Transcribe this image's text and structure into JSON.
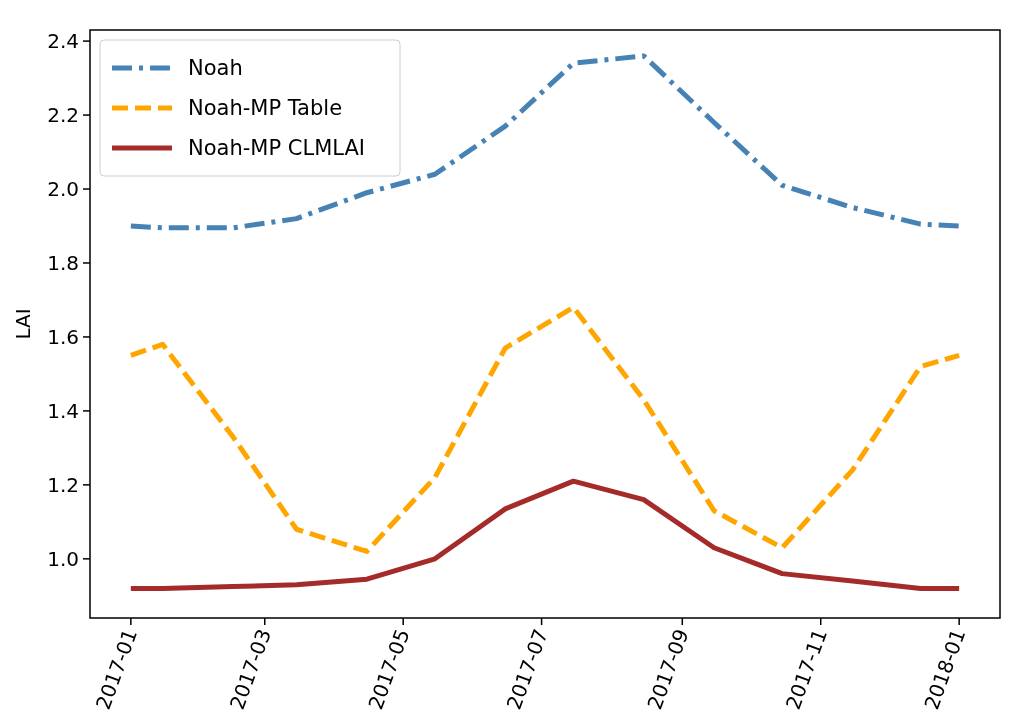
{
  "chart_data": {
    "type": "line",
    "ylabel": "LAI",
    "x": [
      "2017-01-01",
      "2017-01-15",
      "2017-02-15",
      "2017-03-15",
      "2017-04-15",
      "2017-05-15",
      "2017-06-15",
      "2017-07-15",
      "2017-08-15",
      "2017-09-15",
      "2017-10-15",
      "2017-11-15",
      "2017-12-15",
      "2018-01-01"
    ],
    "series": [
      {
        "name": "Noah",
        "color": "#4682b4",
        "line_style": "dashdot",
        "values": [
          1.9,
          1.895,
          1.895,
          1.92,
          1.99,
          2.04,
          2.17,
          2.34,
          2.36,
          2.18,
          2.01,
          1.95,
          1.905,
          1.9
        ]
      },
      {
        "name": "Noah-MP Table",
        "color": "#ffa500",
        "line_style": "dashed",
        "values": [
          1.55,
          1.58,
          1.33,
          1.08,
          1.02,
          1.22,
          1.57,
          1.68,
          1.43,
          1.13,
          1.03,
          1.24,
          1.52,
          1.55
        ]
      },
      {
        "name": "Noah-MP CLMLAI",
        "color": "#a52a2a",
        "line_style": "solid",
        "values": [
          0.92,
          0.92,
          0.925,
          0.93,
          0.945,
          1.0,
          1.135,
          1.21,
          1.16,
          1.03,
          0.96,
          0.94,
          0.92,
          0.92
        ]
      }
    ],
    "xlim": [
      "2016-12-14",
      "2018-01-19"
    ],
    "xticks": [
      {
        "value": "2017-01",
        "label": "2017-01"
      },
      {
        "value": "2017-03",
        "label": "2017-03"
      },
      {
        "value": "2017-05",
        "label": "2017-05"
      },
      {
        "value": "2017-07",
        "label": "2017-07"
      },
      {
        "value": "2017-09",
        "label": "2017-09"
      },
      {
        "value": "2017-11",
        "label": "2017-11"
      },
      {
        "value": "2018-01",
        "label": "2018-01"
      }
    ],
    "ylim": [
      0.84,
      2.43
    ],
    "yticks": [
      {
        "value": 1.0,
        "label": "1.0"
      },
      {
        "value": 1.2,
        "label": "1.2"
      },
      {
        "value": 1.4,
        "label": "1.4"
      },
      {
        "value": 1.6,
        "label": "1.6"
      },
      {
        "value": 1.8,
        "label": "1.8"
      },
      {
        "value": 2.0,
        "label": "2.0"
      },
      {
        "value": 2.2,
        "label": "2.2"
      },
      {
        "value": 2.4,
        "label": "2.4"
      }
    ],
    "legend": "top left",
    "grid": false
  }
}
